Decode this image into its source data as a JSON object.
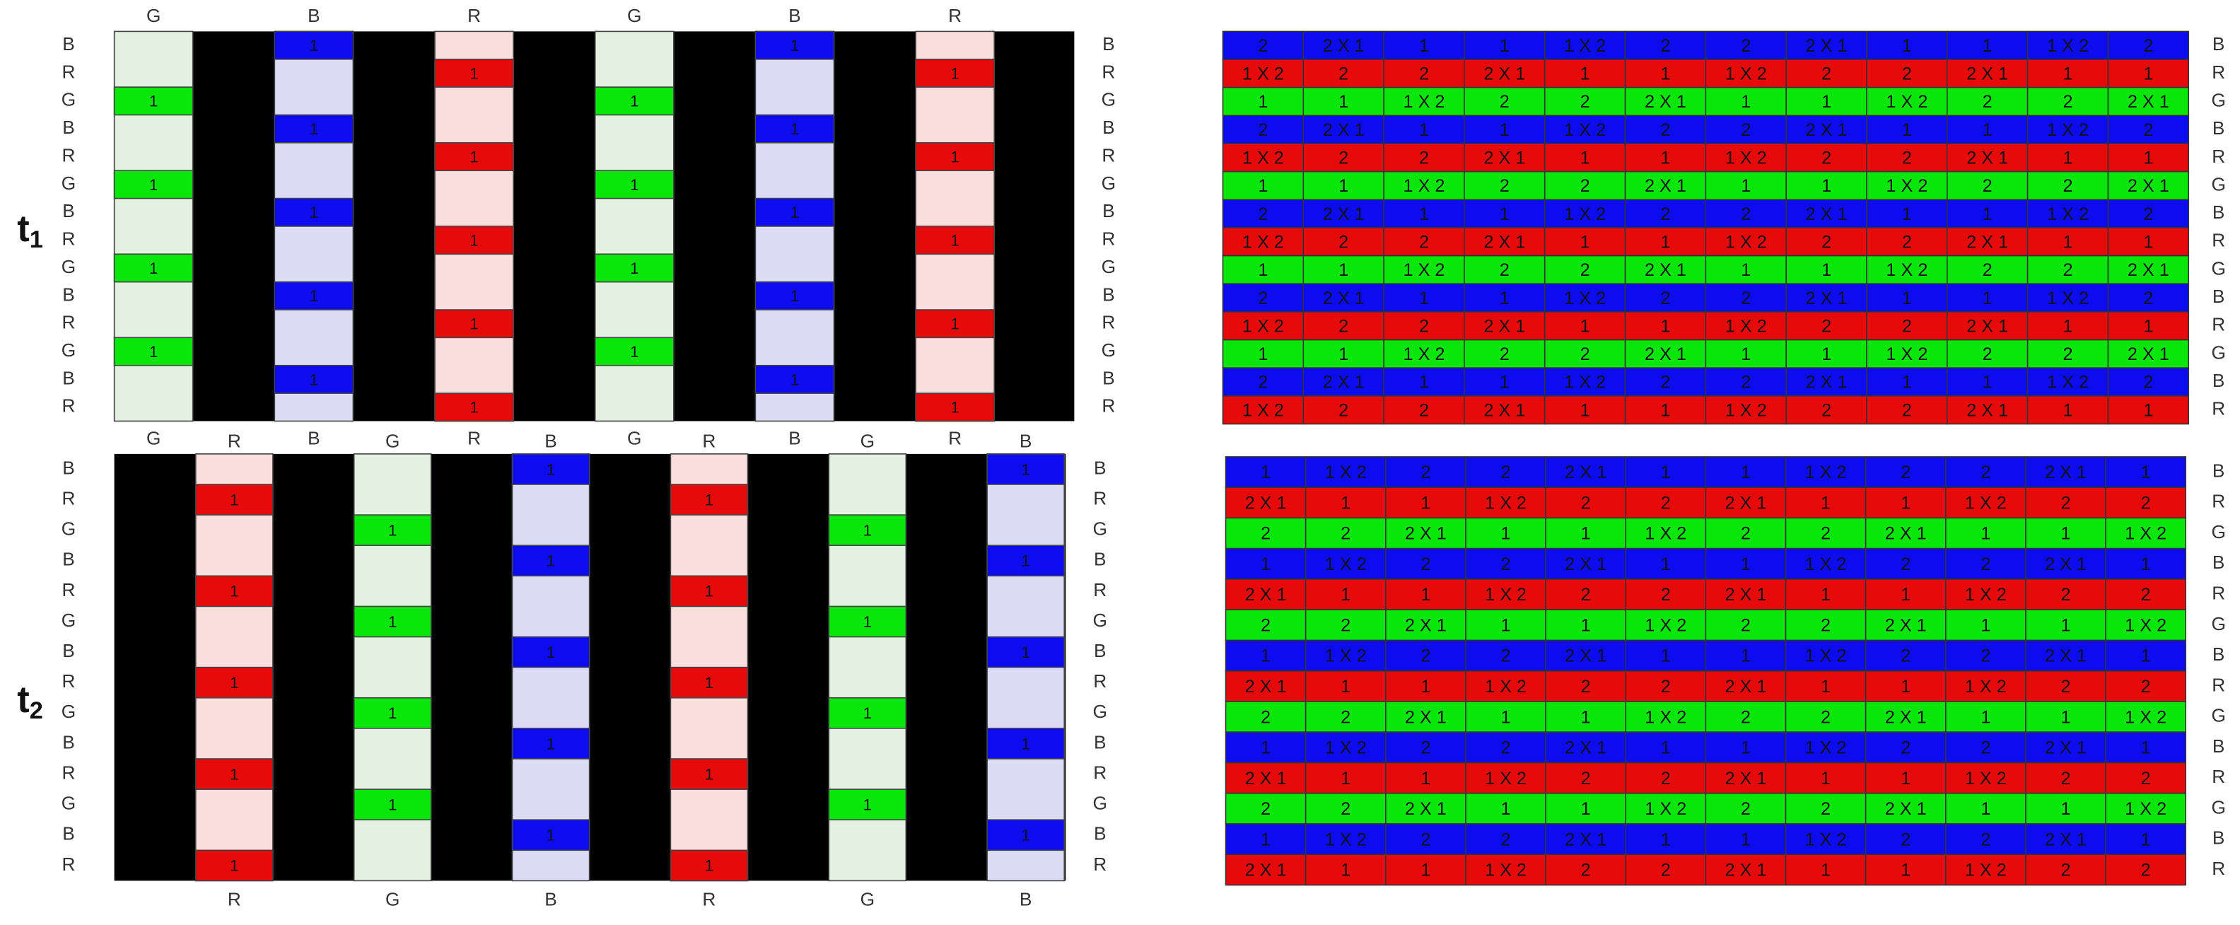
{
  "panels": [
    {
      "time": {
        "base": "t",
        "sub": "1"
      },
      "left": {
        "top_labels": [
          "G",
          "B",
          "R",
          "G",
          "B",
          "R"
        ],
        "bottom_labels": [
          "G",
          "B",
          "R",
          "G",
          "B",
          "R"
        ],
        "row_labels_left": [
          "B",
          "R",
          "G",
          "B",
          "R",
          "G",
          "B",
          "R",
          "G",
          "B",
          "R",
          "G",
          "B",
          "R"
        ],
        "row_labels_right": [
          "B",
          "R",
          "G",
          "B",
          "R",
          "G",
          "B",
          "R",
          "G",
          "B",
          "R",
          "G",
          "B",
          "R"
        ],
        "columns": [
          [
            null,
            null,
            "1",
            null,
            null,
            "1",
            null,
            null,
            "1",
            null,
            null,
            "1",
            null,
            null
          ],
          [
            "1",
            null,
            null,
            "1",
            null,
            null,
            "1",
            null,
            null,
            "1",
            null,
            null,
            "1",
            null
          ],
          [
            null,
            "1",
            null,
            null,
            "1",
            null,
            null,
            "1",
            null,
            null,
            "1",
            null,
            null,
            "1"
          ],
          [
            null,
            null,
            "1",
            null,
            null,
            "1",
            null,
            null,
            "1",
            null,
            null,
            "1",
            null,
            null
          ],
          [
            "1",
            null,
            null,
            "1",
            null,
            null,
            "1",
            null,
            null,
            "1",
            null,
            null,
            "1",
            null
          ],
          [
            null,
            "1",
            null,
            null,
            "1",
            null,
            null,
            "1",
            null,
            null,
            "1",
            null,
            null,
            "1"
          ]
        ]
      },
      "right": {
        "row_labels": [
          "B",
          "R",
          "G",
          "B",
          "R",
          "G",
          "B",
          "R",
          "G",
          "B",
          "R",
          "G",
          "B",
          "R"
        ],
        "rows": [
          [
            "2",
            "2 X 1",
            "1",
            "1",
            "1 X 2",
            "2",
            "2",
            "2 X 1",
            "1",
            "1",
            "1 X 2",
            "2"
          ],
          [
            "1 X 2",
            "2",
            "2",
            "2 X 1",
            "1",
            "1",
            "1 X 2",
            "2",
            "2",
            "2 X 1",
            "1",
            "1"
          ],
          [
            "1",
            "1",
            "1 X 2",
            "2",
            "2",
            "2 X 1",
            "1",
            "1",
            "1 X 2",
            "2",
            "2",
            "2 X 1"
          ],
          [
            "2",
            "2 X 1",
            "1",
            "1",
            "1 X 2",
            "2",
            "2",
            "2 X 1",
            "1",
            "1",
            "1 X 2",
            "2"
          ],
          [
            "1 X 2",
            "2",
            "2",
            "2 X 1",
            "1",
            "1",
            "1 X 2",
            "2",
            "2",
            "2 X 1",
            "1",
            "1"
          ],
          [
            "1",
            "1",
            "1 X 2",
            "2",
            "2",
            "2 X 1",
            "1",
            "1",
            "1 X 2",
            "2",
            "2",
            "2 X 1"
          ],
          [
            "2",
            "2 X 1",
            "1",
            "1",
            "1 X 2",
            "2",
            "2",
            "2 X 1",
            "1",
            "1",
            "1 X 2",
            "2"
          ],
          [
            "1 X 2",
            "2",
            "2",
            "2 X 1",
            "1",
            "1",
            "1 X 2",
            "2",
            "2",
            "2 X 1",
            "1",
            "1"
          ],
          [
            "1",
            "1",
            "1 X 2",
            "2",
            "2",
            "2 X 1",
            "1",
            "1",
            "1 X 2",
            "2",
            "2",
            "2 X 1"
          ],
          [
            "2",
            "2 X 1",
            "1",
            "1",
            "1 X 2",
            "2",
            "2",
            "2 X 1",
            "1",
            "1",
            "1 X 2",
            "2"
          ],
          [
            "1 X 2",
            "2",
            "2",
            "2 X 1",
            "1",
            "1",
            "1 X 2",
            "2",
            "2",
            "2 X 1",
            "1",
            "1"
          ],
          [
            "1",
            "1",
            "1 X 2",
            "2",
            "2",
            "2 X 1",
            "1",
            "1",
            "1 X 2",
            "2",
            "2",
            "2 X 1"
          ],
          [
            "2",
            "2 X 1",
            "1",
            "1",
            "1 X 2",
            "2",
            "2",
            "2 X 1",
            "1",
            "1",
            "1 X 2",
            "2"
          ],
          [
            "1 X 2",
            "2",
            "2",
            "2 X 1",
            "1",
            "1",
            "1 X 2",
            "2",
            "2",
            "2 X 1",
            "1",
            "1"
          ]
        ]
      }
    },
    {
      "time": {
        "base": "t",
        "sub": "2"
      },
      "left": {
        "top_labels": [
          "R",
          "G",
          "B",
          "R",
          "G",
          "B"
        ],
        "bottom_labels": [
          "R",
          "G",
          "B",
          "R",
          "G",
          "B"
        ],
        "row_labels_left": [
          "B",
          "R",
          "G",
          "B",
          "R",
          "G",
          "B",
          "R",
          "G",
          "B",
          "R",
          "G",
          "B",
          "R"
        ],
        "row_labels_right": [
          "B",
          "R",
          "G",
          "B",
          "R",
          "G",
          "B",
          "R",
          "G",
          "B",
          "R",
          "G",
          "B",
          "R"
        ],
        "columns": [
          [
            null,
            "1",
            null,
            null,
            "1",
            null,
            null,
            "1",
            null,
            null,
            "1",
            null,
            null,
            "1"
          ],
          [
            null,
            null,
            "1",
            null,
            null,
            "1",
            null,
            null,
            "1",
            null,
            null,
            "1",
            null,
            null
          ],
          [
            "1",
            null,
            null,
            "1",
            null,
            null,
            "1",
            null,
            null,
            "1",
            null,
            null,
            "1",
            null
          ],
          [
            null,
            "1",
            null,
            null,
            "1",
            null,
            null,
            "1",
            null,
            null,
            "1",
            null,
            null,
            "1"
          ],
          [
            null,
            null,
            "1",
            null,
            null,
            "1",
            null,
            null,
            "1",
            null,
            null,
            "1",
            null,
            null
          ],
          [
            "1",
            null,
            null,
            "1",
            null,
            null,
            "1",
            null,
            null,
            "1",
            null,
            null,
            "1",
            null
          ]
        ]
      },
      "right": {
        "row_labels": [
          "B",
          "R",
          "G",
          "B",
          "R",
          "G",
          "B",
          "R",
          "G",
          "B",
          "R",
          "G",
          "B",
          "R"
        ],
        "rows": [
          [
            "1",
            "1 X 2",
            "2",
            "2",
            "2 X 1",
            "1",
            "1",
            "1 X 2",
            "2",
            "2",
            "2 X 1",
            "1"
          ],
          [
            "2 X 1",
            "1",
            "1",
            "1 X 2",
            "2",
            "2",
            "2 X 1",
            "1",
            "1",
            "1 X 2",
            "2",
            "2"
          ],
          [
            "2",
            "2",
            "2 X 1",
            "1",
            "1",
            "1 X 2",
            "2",
            "2",
            "2 X 1",
            "1",
            "1",
            "1 X 2"
          ],
          [
            "1",
            "1 X 2",
            "2",
            "2",
            "2 X 1",
            "1",
            "1",
            "1 X 2",
            "2",
            "2",
            "2 X 1",
            "1"
          ],
          [
            "2 X 1",
            "1",
            "1",
            "1 X 2",
            "2",
            "2",
            "2 X 1",
            "1",
            "1",
            "1 X 2",
            "2",
            "2"
          ],
          [
            "2",
            "2",
            "2 X 1",
            "1",
            "1",
            "1 X 2",
            "2",
            "2",
            "2 X 1",
            "1",
            "1",
            "1 X 2"
          ],
          [
            "1",
            "1 X 2",
            "2",
            "2",
            "2 X 1",
            "1",
            "1",
            "1 X 2",
            "2",
            "2",
            "2 X 1",
            "1"
          ],
          [
            "2 X 1",
            "1",
            "1",
            "1 X 2",
            "2",
            "2",
            "2 X 1",
            "1",
            "1",
            "1 X 2",
            "2",
            "2"
          ],
          [
            "2",
            "2",
            "2 X 1",
            "1",
            "1",
            "1 X 2",
            "2",
            "2",
            "2 X 1",
            "1",
            "1",
            "1 X 2"
          ],
          [
            "1",
            "1 X 2",
            "2",
            "2",
            "2 X 1",
            "1",
            "1",
            "1 X 2",
            "2",
            "2",
            "2 X 1",
            "1"
          ],
          [
            "2 X 1",
            "1",
            "1",
            "1 X 2",
            "2",
            "2",
            "2 X 1",
            "1",
            "1",
            "1 X 2",
            "2",
            "2"
          ],
          [
            "2",
            "2",
            "2 X 1",
            "1",
            "1",
            "1 X 2",
            "2",
            "2",
            "2 X 1",
            "1",
            "1",
            "1 X 2"
          ],
          [
            "1",
            "1 X 2",
            "2",
            "2",
            "2 X 1",
            "1",
            "1",
            "1 X 2",
            "2",
            "2",
            "2 X 1",
            "1"
          ],
          [
            "2 X 1",
            "1",
            "1",
            "1 X 2",
            "2",
            "2",
            "2 X 1",
            "1",
            "1",
            "1 X 2",
            "2",
            "2"
          ]
        ]
      }
    }
  ]
}
